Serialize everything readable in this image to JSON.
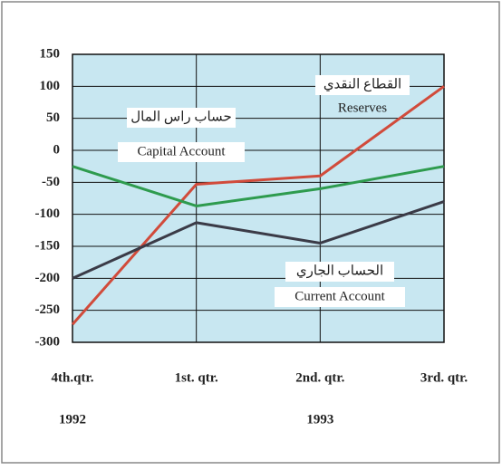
{
  "chart_data": {
    "type": "line",
    "categories": [
      "4th.qtr.",
      "1st. qtr.",
      "2nd. qtr.",
      "3rd. qtr."
    ],
    "year_labels": [
      "1992",
      "1993"
    ],
    "series": [
      {
        "name": "Reserves",
        "label_ar": "القطاع النقدي",
        "color": "#d14b3b",
        "values": [
          -272,
          -53,
          -40,
          100
        ]
      },
      {
        "name": "Capital Account",
        "label_ar": "حساب راس المال",
        "color": "#2e9b4e",
        "values": [
          -25,
          -87,
          -60,
          -25
        ]
      },
      {
        "name": "Current Account",
        "label_ar": "الحساب الجاري",
        "color": "#3b3b47",
        "values": [
          -200,
          -113,
          -145,
          -80
        ]
      }
    ],
    "ylim": [
      -300,
      150
    ],
    "yticks": [
      -300,
      -250,
      -200,
      -150,
      -100,
      -50,
      0,
      50,
      100,
      150
    ],
    "grid": true
  }
}
